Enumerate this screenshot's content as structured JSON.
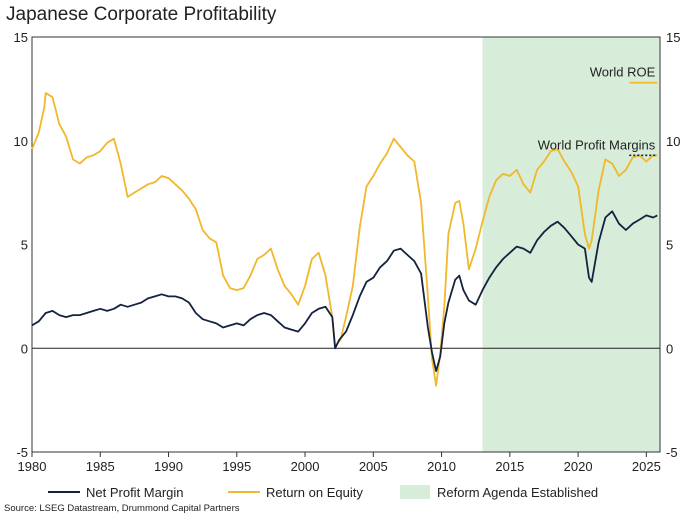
{
  "chart_data": {
    "type": "line",
    "title": "Japanese Corporate Profitability",
    "source": "Source: LSEG Datastream, Drummond Capital Partners",
    "xlim": [
      1980,
      2026
    ],
    "ylim": [
      -5,
      15
    ],
    "x_ticks": [
      1980,
      1985,
      1990,
      1995,
      2000,
      2005,
      2010,
      2015,
      2020,
      2025
    ],
    "y_ticks": [
      -5,
      0,
      5,
      10,
      15
    ],
    "zero_line": true,
    "grid": false,
    "shaded_region": {
      "name": "Reform Agenda Established",
      "from": 2013,
      "to": 2026,
      "color": "#d7ecd9"
    },
    "legend_position": "bottom",
    "series": [
      {
        "name": "Net Profit Margin",
        "color": "#13233f",
        "points": [
          [
            1980.0,
            1.1
          ],
          [
            1980.5,
            1.3
          ],
          [
            1981.0,
            1.7
          ],
          [
            1981.5,
            1.8
          ],
          [
            1982.0,
            1.6
          ],
          [
            1982.5,
            1.5
          ],
          [
            1983.0,
            1.6
          ],
          [
            1983.5,
            1.6
          ],
          [
            1984.0,
            1.7
          ],
          [
            1984.5,
            1.8
          ],
          [
            1985.0,
            1.9
          ],
          [
            1985.5,
            1.8
          ],
          [
            1986.0,
            1.9
          ],
          [
            1986.5,
            2.1
          ],
          [
            1987.0,
            2.0
          ],
          [
            1987.5,
            2.1
          ],
          [
            1988.0,
            2.2
          ],
          [
            1988.5,
            2.4
          ],
          [
            1989.0,
            2.5
          ],
          [
            1989.5,
            2.6
          ],
          [
            1990.0,
            2.5
          ],
          [
            1990.5,
            2.5
          ],
          [
            1991.0,
            2.4
          ],
          [
            1991.5,
            2.2
          ],
          [
            1992.0,
            1.7
          ],
          [
            1992.5,
            1.4
          ],
          [
            1993.0,
            1.3
          ],
          [
            1993.5,
            1.2
          ],
          [
            1994.0,
            1.0
          ],
          [
            1994.5,
            1.1
          ],
          [
            1995.0,
            1.2
          ],
          [
            1995.5,
            1.1
          ],
          [
            1996.0,
            1.4
          ],
          [
            1996.5,
            1.6
          ],
          [
            1997.0,
            1.7
          ],
          [
            1997.5,
            1.6
          ],
          [
            1998.0,
            1.3
          ],
          [
            1998.5,
            1.0
          ],
          [
            1999.0,
            0.9
          ],
          [
            1999.5,
            0.8
          ],
          [
            2000.0,
            1.2
          ],
          [
            2000.5,
            1.7
          ],
          [
            2001.0,
            1.9
          ],
          [
            2001.5,
            2.0
          ],
          [
            2002.0,
            1.5
          ],
          [
            2002.2,
            0.0
          ],
          [
            2002.5,
            0.4
          ],
          [
            2003.0,
            0.8
          ],
          [
            2003.5,
            1.6
          ],
          [
            2004.0,
            2.5
          ],
          [
            2004.5,
            3.2
          ],
          [
            2005.0,
            3.4
          ],
          [
            2005.5,
            3.9
          ],
          [
            2006.0,
            4.2
          ],
          [
            2006.5,
            4.7
          ],
          [
            2007.0,
            4.8
          ],
          [
            2007.5,
            4.5
          ],
          [
            2008.0,
            4.2
          ],
          [
            2008.5,
            3.6
          ],
          [
            2009.0,
            1.0
          ],
          [
            2009.3,
            -0.2
          ],
          [
            2009.6,
            -1.1
          ],
          [
            2009.9,
            -0.4
          ],
          [
            2010.2,
            1.2
          ],
          [
            2010.5,
            2.2
          ],
          [
            2011.0,
            3.3
          ],
          [
            2011.3,
            3.5
          ],
          [
            2011.6,
            2.8
          ],
          [
            2012.0,
            2.3
          ],
          [
            2012.5,
            2.1
          ],
          [
            2013.0,
            2.8
          ],
          [
            2013.5,
            3.4
          ],
          [
            2014.0,
            3.9
          ],
          [
            2014.5,
            4.3
          ],
          [
            2015.0,
            4.6
          ],
          [
            2015.5,
            4.9
          ],
          [
            2016.0,
            4.8
          ],
          [
            2016.5,
            4.6
          ],
          [
            2017.0,
            5.2
          ],
          [
            2017.5,
            5.6
          ],
          [
            2018.0,
            5.9
          ],
          [
            2018.5,
            6.1
          ],
          [
            2019.0,
            5.8
          ],
          [
            2019.5,
            5.4
          ],
          [
            2020.0,
            5.0
          ],
          [
            2020.5,
            4.8
          ],
          [
            2020.8,
            3.4
          ],
          [
            2021.0,
            3.2
          ],
          [
            2021.5,
            5.1
          ],
          [
            2022.0,
            6.3
          ],
          [
            2022.5,
            6.6
          ],
          [
            2023.0,
            6.0
          ],
          [
            2023.5,
            5.7
          ],
          [
            2024.0,
            6.0
          ],
          [
            2024.5,
            6.2
          ],
          [
            2025.0,
            6.4
          ],
          [
            2025.5,
            6.3
          ],
          [
            2025.8,
            6.4
          ]
        ]
      },
      {
        "name": "Return on Equity",
        "color": "#f0b82a",
        "points": [
          [
            1980.0,
            9.6
          ],
          [
            1980.5,
            10.4
          ],
          [
            1980.9,
            11.6
          ],
          [
            1981.0,
            12.3
          ],
          [
            1981.5,
            12.1
          ],
          [
            1982.0,
            10.8
          ],
          [
            1982.5,
            10.2
          ],
          [
            1983.0,
            9.1
          ],
          [
            1983.5,
            8.9
          ],
          [
            1984.0,
            9.2
          ],
          [
            1984.5,
            9.3
          ],
          [
            1985.0,
            9.5
          ],
          [
            1985.5,
            9.9
          ],
          [
            1986.0,
            10.1
          ],
          [
            1986.5,
            8.9
          ],
          [
            1987.0,
            7.3
          ],
          [
            1987.5,
            7.5
          ],
          [
            1988.0,
            7.7
          ],
          [
            1988.5,
            7.9
          ],
          [
            1989.0,
            8.0
          ],
          [
            1989.5,
            8.3
          ],
          [
            1990.0,
            8.2
          ],
          [
            1990.5,
            7.9
          ],
          [
            1991.0,
            7.6
          ],
          [
            1991.5,
            7.2
          ],
          [
            1992.0,
            6.7
          ],
          [
            1992.5,
            5.7
          ],
          [
            1993.0,
            5.3
          ],
          [
            1993.5,
            5.1
          ],
          [
            1994.0,
            3.5
          ],
          [
            1994.5,
            2.9
          ],
          [
            1995.0,
            2.8
          ],
          [
            1995.5,
            2.9
          ],
          [
            1996.0,
            3.5
          ],
          [
            1996.5,
            4.3
          ],
          [
            1997.0,
            4.5
          ],
          [
            1997.5,
            4.8
          ],
          [
            1998.0,
            3.8
          ],
          [
            1998.5,
            3.0
          ],
          [
            1999.0,
            2.6
          ],
          [
            1999.5,
            2.1
          ],
          [
            2000.0,
            3.0
          ],
          [
            2000.5,
            4.3
          ],
          [
            2001.0,
            4.6
          ],
          [
            2001.5,
            3.5
          ],
          [
            2002.0,
            1.5
          ],
          [
            2002.2,
            0.1
          ],
          [
            2002.6,
            0.4
          ],
          [
            2003.0,
            1.5
          ],
          [
            2003.5,
            3.0
          ],
          [
            2004.0,
            5.8
          ],
          [
            2004.5,
            7.8
          ],
          [
            2005.0,
            8.3
          ],
          [
            2005.5,
            8.9
          ],
          [
            2006.0,
            9.4
          ],
          [
            2006.5,
            10.1
          ],
          [
            2007.0,
            9.7
          ],
          [
            2007.5,
            9.3
          ],
          [
            2008.0,
            9.0
          ],
          [
            2008.5,
            7.0
          ],
          [
            2009.0,
            2.5
          ],
          [
            2009.3,
            -0.5
          ],
          [
            2009.6,
            -1.8
          ],
          [
            2009.9,
            -0.3
          ],
          [
            2010.2,
            2.0
          ],
          [
            2010.5,
            5.5
          ],
          [
            2011.0,
            7.0
          ],
          [
            2011.3,
            7.1
          ],
          [
            2011.6,
            6.0
          ],
          [
            2012.0,
            3.8
          ],
          [
            2012.5,
            4.8
          ],
          [
            2013.0,
            6.1
          ],
          [
            2013.5,
            7.3
          ],
          [
            2014.0,
            8.1
          ],
          [
            2014.5,
            8.4
          ],
          [
            2015.0,
            8.3
          ],
          [
            2015.5,
            8.6
          ],
          [
            2016.0,
            7.9
          ],
          [
            2016.5,
            7.5
          ],
          [
            2017.0,
            8.6
          ],
          [
            2017.5,
            9.0
          ],
          [
            2018.0,
            9.5
          ],
          [
            2018.5,
            9.6
          ],
          [
            2019.0,
            9.0
          ],
          [
            2019.5,
            8.5
          ],
          [
            2020.0,
            7.8
          ],
          [
            2020.5,
            5.5
          ],
          [
            2020.8,
            4.8
          ],
          [
            2021.0,
            5.2
          ],
          [
            2021.5,
            7.6
          ],
          [
            2022.0,
            9.1
          ],
          [
            2022.5,
            8.9
          ],
          [
            2023.0,
            8.3
          ],
          [
            2023.5,
            8.6
          ],
          [
            2024.0,
            9.2
          ],
          [
            2024.5,
            9.3
          ],
          [
            2025.0,
            9.0
          ],
          [
            2025.5,
            9.3
          ],
          [
            2025.8,
            9.3
          ]
        ]
      }
    ],
    "annotations": [
      {
        "text": "World ROE",
        "y": 12.8,
        "style": "solid",
        "color": "#f0b82a"
      },
      {
        "text": "World Profit Margins",
        "y": 9.3,
        "style": "dotted",
        "color": "#13233f"
      }
    ]
  }
}
